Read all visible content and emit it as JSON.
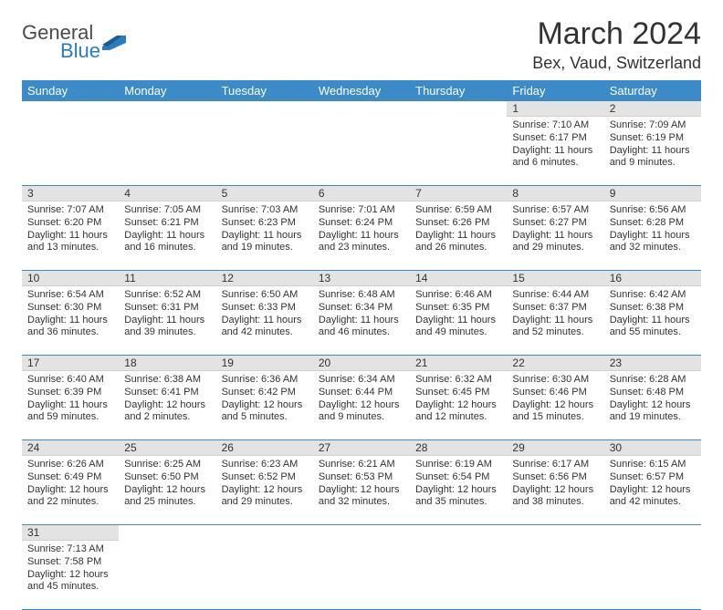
{
  "logo": {
    "text1": "General",
    "text2": "Blue"
  },
  "title": "March 2024",
  "location": "Bex, Vaud, Switzerland",
  "colors": {
    "header_bg": "#3b8bc8",
    "header_fg": "#ffffff",
    "daynum_bg": "#e3e3e3",
    "row_divider": "#3b8bc8",
    "logo_gray": "#4a4a4a",
    "logo_blue": "#2b7bbf"
  },
  "day_headers": [
    "Sunday",
    "Monday",
    "Tuesday",
    "Wednesday",
    "Thursday",
    "Friday",
    "Saturday"
  ],
  "weeks": [
    [
      null,
      null,
      null,
      null,
      null,
      {
        "n": "1",
        "sunrise": "Sunrise: 7:10 AM",
        "sunset": "Sunset: 6:17 PM",
        "daylight": "Daylight: 11 hours and 6 minutes."
      },
      {
        "n": "2",
        "sunrise": "Sunrise: 7:09 AM",
        "sunset": "Sunset: 6:19 PM",
        "daylight": "Daylight: 11 hours and 9 minutes."
      }
    ],
    [
      {
        "n": "3",
        "sunrise": "Sunrise: 7:07 AM",
        "sunset": "Sunset: 6:20 PM",
        "daylight": "Daylight: 11 hours and 13 minutes."
      },
      {
        "n": "4",
        "sunrise": "Sunrise: 7:05 AM",
        "sunset": "Sunset: 6:21 PM",
        "daylight": "Daylight: 11 hours and 16 minutes."
      },
      {
        "n": "5",
        "sunrise": "Sunrise: 7:03 AM",
        "sunset": "Sunset: 6:23 PM",
        "daylight": "Daylight: 11 hours and 19 minutes."
      },
      {
        "n": "6",
        "sunrise": "Sunrise: 7:01 AM",
        "sunset": "Sunset: 6:24 PM",
        "daylight": "Daylight: 11 hours and 23 minutes."
      },
      {
        "n": "7",
        "sunrise": "Sunrise: 6:59 AM",
        "sunset": "Sunset: 6:26 PM",
        "daylight": "Daylight: 11 hours and 26 minutes."
      },
      {
        "n": "8",
        "sunrise": "Sunrise: 6:57 AM",
        "sunset": "Sunset: 6:27 PM",
        "daylight": "Daylight: 11 hours and 29 minutes."
      },
      {
        "n": "9",
        "sunrise": "Sunrise: 6:56 AM",
        "sunset": "Sunset: 6:28 PM",
        "daylight": "Daylight: 11 hours and 32 minutes."
      }
    ],
    [
      {
        "n": "10",
        "sunrise": "Sunrise: 6:54 AM",
        "sunset": "Sunset: 6:30 PM",
        "daylight": "Daylight: 11 hours and 36 minutes."
      },
      {
        "n": "11",
        "sunrise": "Sunrise: 6:52 AM",
        "sunset": "Sunset: 6:31 PM",
        "daylight": "Daylight: 11 hours and 39 minutes."
      },
      {
        "n": "12",
        "sunrise": "Sunrise: 6:50 AM",
        "sunset": "Sunset: 6:33 PM",
        "daylight": "Daylight: 11 hours and 42 minutes."
      },
      {
        "n": "13",
        "sunrise": "Sunrise: 6:48 AM",
        "sunset": "Sunset: 6:34 PM",
        "daylight": "Daylight: 11 hours and 46 minutes."
      },
      {
        "n": "14",
        "sunrise": "Sunrise: 6:46 AM",
        "sunset": "Sunset: 6:35 PM",
        "daylight": "Daylight: 11 hours and 49 minutes."
      },
      {
        "n": "15",
        "sunrise": "Sunrise: 6:44 AM",
        "sunset": "Sunset: 6:37 PM",
        "daylight": "Daylight: 11 hours and 52 minutes."
      },
      {
        "n": "16",
        "sunrise": "Sunrise: 6:42 AM",
        "sunset": "Sunset: 6:38 PM",
        "daylight": "Daylight: 11 hours and 55 minutes."
      }
    ],
    [
      {
        "n": "17",
        "sunrise": "Sunrise: 6:40 AM",
        "sunset": "Sunset: 6:39 PM",
        "daylight": "Daylight: 11 hours and 59 minutes."
      },
      {
        "n": "18",
        "sunrise": "Sunrise: 6:38 AM",
        "sunset": "Sunset: 6:41 PM",
        "daylight": "Daylight: 12 hours and 2 minutes."
      },
      {
        "n": "19",
        "sunrise": "Sunrise: 6:36 AM",
        "sunset": "Sunset: 6:42 PM",
        "daylight": "Daylight: 12 hours and 5 minutes."
      },
      {
        "n": "20",
        "sunrise": "Sunrise: 6:34 AM",
        "sunset": "Sunset: 6:44 PM",
        "daylight": "Daylight: 12 hours and 9 minutes."
      },
      {
        "n": "21",
        "sunrise": "Sunrise: 6:32 AM",
        "sunset": "Sunset: 6:45 PM",
        "daylight": "Daylight: 12 hours and 12 minutes."
      },
      {
        "n": "22",
        "sunrise": "Sunrise: 6:30 AM",
        "sunset": "Sunset: 6:46 PM",
        "daylight": "Daylight: 12 hours and 15 minutes."
      },
      {
        "n": "23",
        "sunrise": "Sunrise: 6:28 AM",
        "sunset": "Sunset: 6:48 PM",
        "daylight": "Daylight: 12 hours and 19 minutes."
      }
    ],
    [
      {
        "n": "24",
        "sunrise": "Sunrise: 6:26 AM",
        "sunset": "Sunset: 6:49 PM",
        "daylight": "Daylight: 12 hours and 22 minutes."
      },
      {
        "n": "25",
        "sunrise": "Sunrise: 6:25 AM",
        "sunset": "Sunset: 6:50 PM",
        "daylight": "Daylight: 12 hours and 25 minutes."
      },
      {
        "n": "26",
        "sunrise": "Sunrise: 6:23 AM",
        "sunset": "Sunset: 6:52 PM",
        "daylight": "Daylight: 12 hours and 29 minutes."
      },
      {
        "n": "27",
        "sunrise": "Sunrise: 6:21 AM",
        "sunset": "Sunset: 6:53 PM",
        "daylight": "Daylight: 12 hours and 32 minutes."
      },
      {
        "n": "28",
        "sunrise": "Sunrise: 6:19 AM",
        "sunset": "Sunset: 6:54 PM",
        "daylight": "Daylight: 12 hours and 35 minutes."
      },
      {
        "n": "29",
        "sunrise": "Sunrise: 6:17 AM",
        "sunset": "Sunset: 6:56 PM",
        "daylight": "Daylight: 12 hours and 38 minutes."
      },
      {
        "n": "30",
        "sunrise": "Sunrise: 6:15 AM",
        "sunset": "Sunset: 6:57 PM",
        "daylight": "Daylight: 12 hours and 42 minutes."
      }
    ],
    [
      {
        "n": "31",
        "sunrise": "Sunrise: 7:13 AM",
        "sunset": "Sunset: 7:58 PM",
        "daylight": "Daylight: 12 hours and 45 minutes."
      },
      null,
      null,
      null,
      null,
      null,
      null
    ]
  ]
}
